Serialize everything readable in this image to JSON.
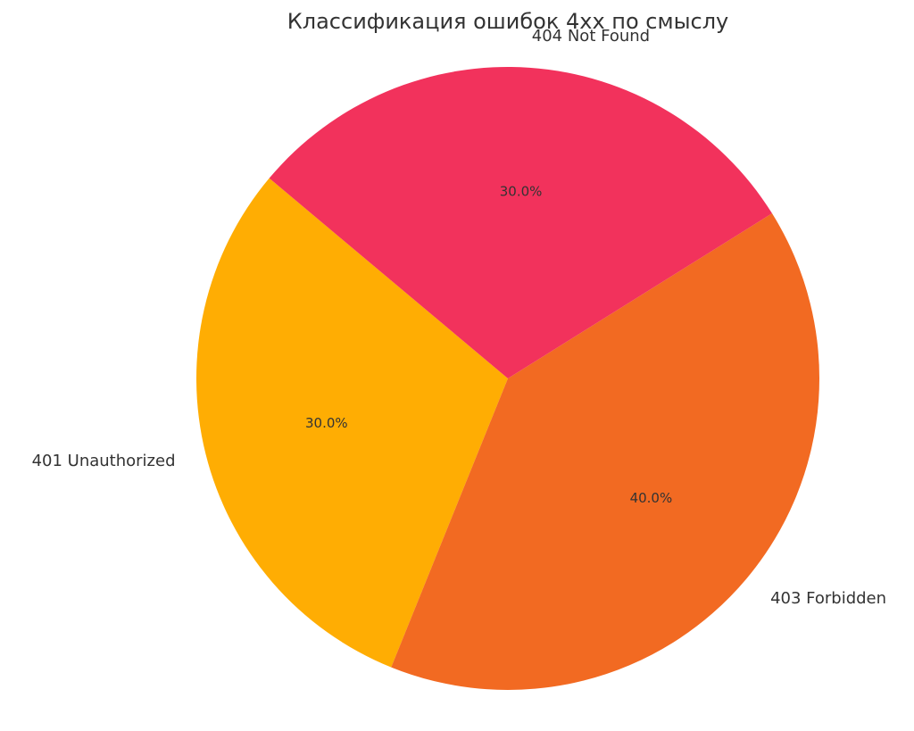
{
  "chart_data": {
    "type": "pie",
    "title": "Классификация ошибок 4xx по смыслу",
    "categories": [
      "401 Unauthorized",
      "403 Forbidden",
      "404 Not Found"
    ],
    "values": [
      30,
      40,
      30
    ],
    "value_labels": [
      "30.0%",
      "40.0%",
      "30.0%"
    ],
    "colors": [
      "#ffad03",
      "#f26a22",
      "#f2325c"
    ]
  }
}
